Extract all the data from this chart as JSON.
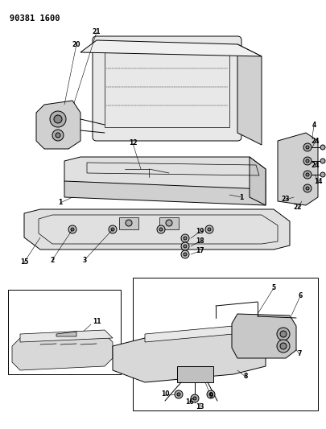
{
  "title": "90381 1600",
  "bg_color": "#ffffff",
  "lc": "#000000",
  "fig_w": 4.06,
  "fig_h": 5.33,
  "dpi": 100,
  "gray_light": "#c8c8c8",
  "gray_mid": "#a0a0a0",
  "gray_dark": "#707070"
}
